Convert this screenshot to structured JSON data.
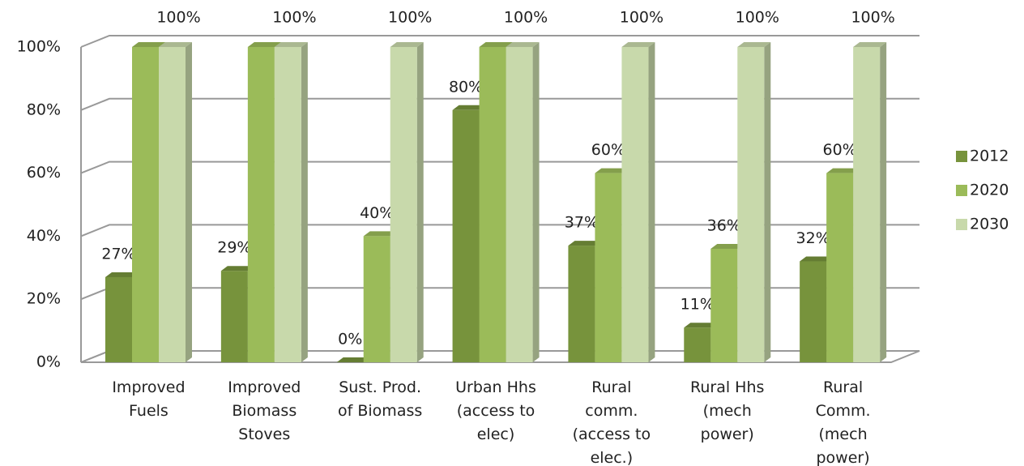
{
  "chart_data": {
    "type": "bar3d",
    "categories": [
      "Improved\nFuels",
      "Improved\nBiomass\nStoves",
      "Sust. Prod.\nof Biomass",
      "Urban Hhs\n(access to\nelec)",
      "Rural\ncomm.\n(access to\nelec.)",
      "Rural Hhs\n(mech\npower)",
      "Rural\nComm.\n(mech\npower)"
    ],
    "series": [
      {
        "name": "2012",
        "color": "#77933c",
        "values": [
          27,
          29,
          0,
          80,
          37,
          11,
          32
        ],
        "value_labels": [
          "27%",
          "29%",
          "0%",
          "80%",
          "37%",
          "11%",
          "32%"
        ]
      },
      {
        "name": "2020",
        "color": "#9bbb59",
        "values": [
          100,
          100,
          40,
          100,
          60,
          36,
          60
        ],
        "value_labels": [
          null,
          null,
          "40%",
          null,
          "60%",
          "36%",
          "60%"
        ]
      },
      {
        "name": "2030",
        "color": "#c8d9ab",
        "values": [
          100,
          100,
          100,
          100,
          100,
          100,
          100
        ],
        "value_labels": [
          "100%",
          "100%",
          "100%",
          "100%",
          "100%",
          "100%",
          "100%"
        ]
      }
    ],
    "ylim": [
      0,
      100
    ],
    "yticks": [
      {
        "value": 0,
        "label": "0%"
      },
      {
        "value": 20,
        "label": "20%"
      },
      {
        "value": 40,
        "label": "40%"
      },
      {
        "value": 60,
        "label": "60%"
      },
      {
        "value": 80,
        "label": "80%"
      },
      {
        "value": 100,
        "label": "100%"
      }
    ],
    "grid": true,
    "legend": "right"
  }
}
